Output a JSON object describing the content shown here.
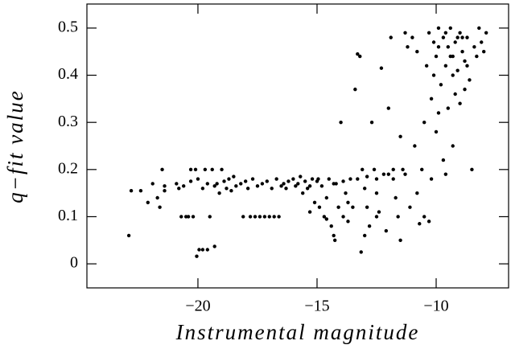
{
  "chart_data": {
    "type": "scatter",
    "x_label": "Instrumental magnitude",
    "y_label": "q−fit value",
    "color": "#000000",
    "xlim": [
      -24.66,
      -6.96
    ],
    "ylim": [
      -0.051,
      0.551
    ],
    "xticks": [
      {
        "value": -20,
        "label": "−20"
      },
      {
        "value": -15,
        "label": "−15"
      },
      {
        "value": -10,
        "label": "−10"
      }
    ],
    "yticks": [
      0,
      0.1,
      0.2,
      0.3,
      0.4,
      0.5
    ],
    "grid": false,
    "x": [
      -22.9,
      -22.8,
      -22.4,
      -22.1,
      -21.9,
      -21.7,
      -21.6,
      -21.5,
      -21.4,
      -21.4,
      -20.9,
      -20.8,
      -20.7,
      -20.5,
      -20.4,
      -20.3,
      -20.2,
      -20.1,
      -20.05,
      -19.95,
      -19.8,
      -19.6,
      -19.3,
      -20.6,
      -20.3,
      -20.0,
      -19.8,
      -19.7,
      -19.6,
      -19.5,
      -19.4,
      -19.3,
      -19.2,
      -19.1,
      -19.0,
      -18.9,
      -18.8,
      -18.7,
      -18.6,
      -18.5,
      -18.4,
      -18.2,
      -18.1,
      -18.0,
      -17.9,
      -17.8,
      -17.7,
      -17.6,
      -17.5,
      -17.4,
      -17.3,
      -17.2,
      -17.1,
      -17.0,
      -16.9,
      -16.8,
      -16.7,
      -16.6,
      -16.5,
      -16.4,
      -16.2,
      -16.0,
      -15.9,
      -15.8,
      -15.6,
      -15.5,
      -15.4,
      -15.2,
      -15.1,
      -15.0,
      -14.9,
      -14.8,
      -14.7,
      -14.6,
      -14.5,
      -14.4,
      -14.3,
      -14.25,
      -14.2,
      -14.1,
      -14.0,
      -13.9,
      -13.8,
      -13.7,
      -13.6,
      -13.5,
      -13.4,
      -13.3,
      -13.2,
      -13.15,
      -13.1,
      -13.0,
      -12.9,
      -12.8,
      -12.7,
      -12.6,
      -12.5,
      -12.4,
      -12.3,
      -12.2,
      -12.1,
      -12.0,
      -11.9,
      -11.8,
      -11.7,
      -11.6,
      -11.5,
      -11.4,
      -11.3,
      -11.2,
      -11.1,
      -11.0,
      -10.9,
      -10.8,
      -10.7,
      -10.6,
      -10.5,
      -10.4,
      -10.3,
      -10.2,
      -10.1,
      -10.0,
      -10.0,
      -9.9,
      -9.8,
      -9.7,
      -9.6,
      -9.5,
      -9.4,
      -9.3,
      -9.2,
      -9.1,
      -9.0,
      -8.9,
      -8.8,
      -8.7,
      -8.6,
      -8.5,
      -8.4,
      -8.3,
      -8.2,
      -8.1,
      -8.0,
      -7.9,
      -9.9,
      -9.7,
      -9.5,
      -9.3,
      -9.6,
      -10.2,
      -10.8,
      -11.3,
      -9.2,
      -9.0,
      -8.8,
      -16.3,
      -15.7,
      -15.3,
      -14.95,
      -14.3,
      -13.9,
      -13.3,
      -12.9,
      -12.5,
      -12.0,
      -11.8,
      -13.7,
      -14.6,
      -15.3,
      -13.0,
      -12.5,
      -10.5,
      -10.3,
      -11.5,
      -9.9,
      -9.4,
      -9.1,
      -8.7,
      -9.6,
      -10.1,
      -9.3,
      -8.9
    ],
    "values": [
      0.06,
      0.155,
      0.155,
      0.13,
      0.17,
      0.14,
      0.12,
      0.2,
      0.165,
      0.155,
      0.17,
      0.16,
      0.1,
      0.1,
      0.1,
      0.2,
      0.1,
      0.2,
      0.016,
      0.03,
      0.03,
      0.03,
      0.037,
      0.165,
      0.175,
      0.18,
      0.16,
      0.2,
      0.17,
      0.1,
      0.2,
      0.165,
      0.17,
      0.15,
      0.2,
      0.175,
      0.16,
      0.18,
      0.155,
      0.185,
      0.165,
      0.17,
      0.1,
      0.175,
      0.16,
      0.1,
      0.18,
      0.1,
      0.165,
      0.1,
      0.17,
      0.1,
      0.175,
      0.1,
      0.16,
      0.1,
      0.18,
      0.1,
      0.165,
      0.17,
      0.175,
      0.18,
      0.165,
      0.17,
      0.15,
      0.175,
      0.16,
      0.18,
      0.13,
      0.175,
      0.12,
      0.165,
      0.1,
      0.14,
      0.18,
      0.08,
      0.06,
      0.05,
      0.17,
      0.12,
      0.3,
      0.1,
      0.15,
      0.09,
      0.18,
      0.12,
      0.37,
      0.445,
      0.44,
      0.025,
      0.2,
      0.16,
      0.12,
      0.08,
      0.3,
      0.2,
      0.15,
      0.11,
      0.415,
      0.19,
      0.07,
      0.33,
      0.48,
      0.18,
      0.14,
      0.1,
      0.27,
      0.2,
      0.49,
      0.46,
      0.12,
      0.48,
      0.25,
      0.45,
      0.085,
      0.2,
      0.3,
      0.42,
      0.49,
      0.35,
      0.47,
      0.28,
      0.44,
      0.5,
      0.38,
      0.48,
      0.42,
      0.46,
      0.5,
      0.44,
      0.47,
      0.41,
      0.49,
      0.45,
      0.43,
      0.48,
      0.39,
      0.2,
      0.46,
      0.44,
      0.5,
      0.47,
      0.45,
      0.49,
      0.32,
      0.22,
      0.33,
      0.25,
      0.19,
      0.18,
      0.15,
      0.19,
      0.36,
      0.34,
      0.37,
      0.16,
      0.185,
      0.165,
      0.18,
      0.17,
      0.175,
      0.18,
      0.185,
      0.18,
      0.19,
      0.2,
      0.13,
      0.095,
      0.11,
      0.06,
      0.1,
      0.1,
      0.09,
      0.05,
      0.46,
      0.44,
      0.48,
      0.42,
      0.49,
      0.4,
      0.4,
      0.48
    ]
  }
}
